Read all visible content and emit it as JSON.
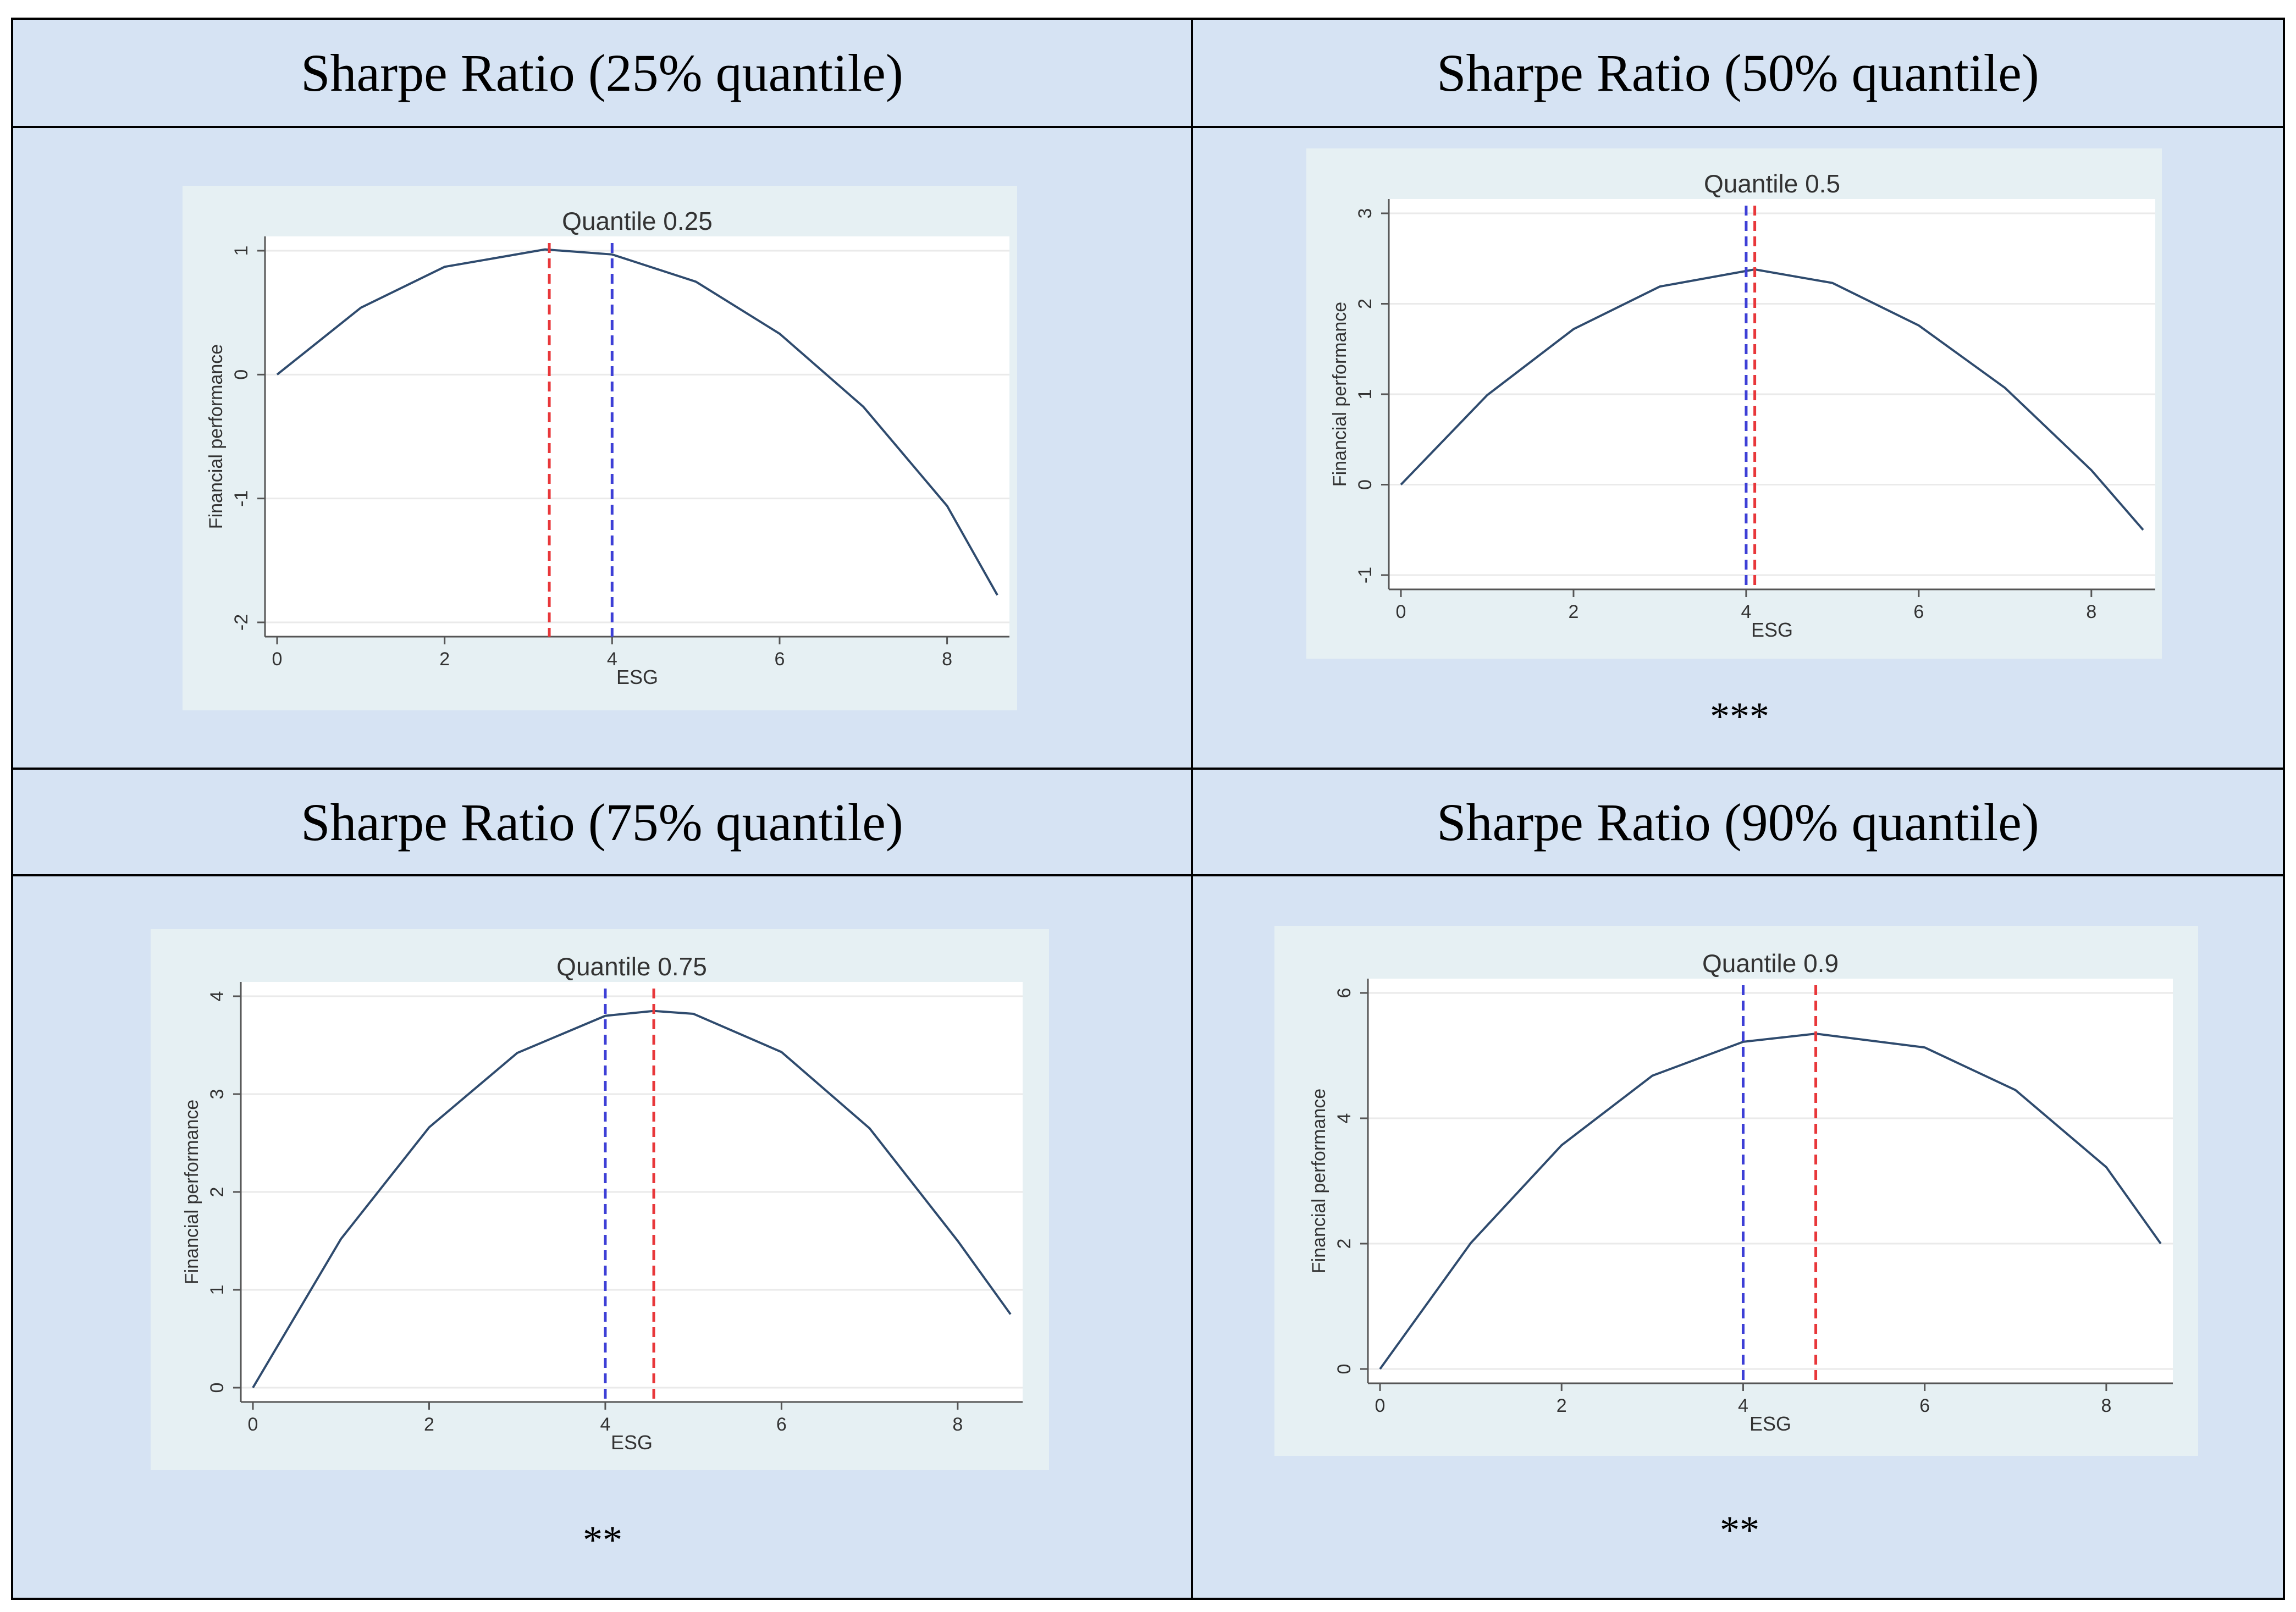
{
  "table": {
    "headers": [
      "Sharpe Ratio (25% quantile)",
      "Sharpe Ratio (50% quantile)",
      "Sharpe Ratio (75% quantile)",
      "Sharpe Ratio (90% quantile)"
    ],
    "significance": [
      "",
      "***",
      "**",
      "**"
    ]
  },
  "colors": {
    "curve": "#2f4b6e",
    "red_line": "#e8373a",
    "blue_line": "#3d3fd6",
    "plot_bg": "#e6f0f3",
    "cell_bg": "#d6e3f3"
  },
  "chart_data": [
    {
      "type": "line",
      "title": "Quantile 0.25",
      "xlabel": "ESG",
      "ylabel": "Financial performance",
      "xlim": [
        0,
        8.6
      ],
      "ylim": [
        -2,
        1
      ],
      "xticks": [
        0,
        2,
        4,
        6,
        8
      ],
      "yticks": [
        -2,
        -1,
        0,
        1
      ],
      "series": [
        {
          "name": "fitted",
          "x": [
            0,
            1,
            2,
            3.2,
            4,
            5,
            6,
            7,
            8,
            8.6
          ],
          "y": [
            0,
            0.54,
            0.87,
            1.01,
            0.97,
            0.75,
            0.33,
            -0.26,
            -1.06,
            -1.78
          ]
        }
      ],
      "vlines": [
        {
          "x": 3.25,
          "color": "red"
        },
        {
          "x": 4.0,
          "color": "blue"
        }
      ]
    },
    {
      "type": "line",
      "title": "Quantile 0.5",
      "xlabel": "ESG",
      "ylabel": "Financial performance",
      "xlim": [
        0,
        8.6
      ],
      "ylim": [
        -1,
        3
      ],
      "xticks": [
        0,
        2,
        4,
        6,
        8
      ],
      "yticks": [
        -1,
        0,
        1,
        2,
        3
      ],
      "series": [
        {
          "name": "fitted",
          "x": [
            0,
            1,
            2,
            3,
            4.1,
            5,
            6,
            7,
            8,
            8.6
          ],
          "y": [
            0,
            0.99,
            1.72,
            2.19,
            2.38,
            2.23,
            1.76,
            1.07,
            0.16,
            -0.5
          ]
        }
      ],
      "vlines": [
        {
          "x": 4.0,
          "color": "blue"
        },
        {
          "x": 4.1,
          "color": "red"
        }
      ]
    },
    {
      "type": "line",
      "title": "Quantile 0.75",
      "xlabel": "ESG",
      "ylabel": "Financial performance",
      "xlim": [
        0,
        8.6
      ],
      "ylim": [
        0,
        4
      ],
      "xticks": [
        0,
        2,
        4,
        6,
        8
      ],
      "yticks": [
        0,
        1,
        2,
        3,
        4
      ],
      "series": [
        {
          "name": "fitted",
          "x": [
            0,
            1,
            2,
            3,
            4,
            4.55,
            5,
            6,
            7,
            8,
            8.6
          ],
          "y": [
            0,
            1.52,
            2.66,
            3.42,
            3.8,
            3.85,
            3.82,
            3.43,
            2.65,
            1.5,
            0.75
          ]
        }
      ],
      "vlines": [
        {
          "x": 4.0,
          "color": "blue"
        },
        {
          "x": 4.55,
          "color": "red"
        }
      ]
    },
    {
      "type": "line",
      "title": "Quantile 0.9",
      "xlabel": "ESG",
      "ylabel": "Financial performance",
      "xlim": [
        0,
        8.6
      ],
      "ylim": [
        0,
        6
      ],
      "xticks": [
        0,
        2,
        4,
        6,
        8
      ],
      "yticks": [
        0,
        2,
        4,
        6
      ],
      "series": [
        {
          "name": "fitted",
          "x": [
            0,
            1,
            2,
            3,
            4,
            4.8,
            6,
            7,
            8,
            8.6
          ],
          "y": [
            0,
            2.01,
            3.57,
            4.68,
            5.22,
            5.35,
            5.13,
            4.45,
            3.22,
            2.0
          ]
        }
      ],
      "vlines": [
        {
          "x": 4.0,
          "color": "blue"
        },
        {
          "x": 4.8,
          "color": "red"
        }
      ]
    }
  ]
}
